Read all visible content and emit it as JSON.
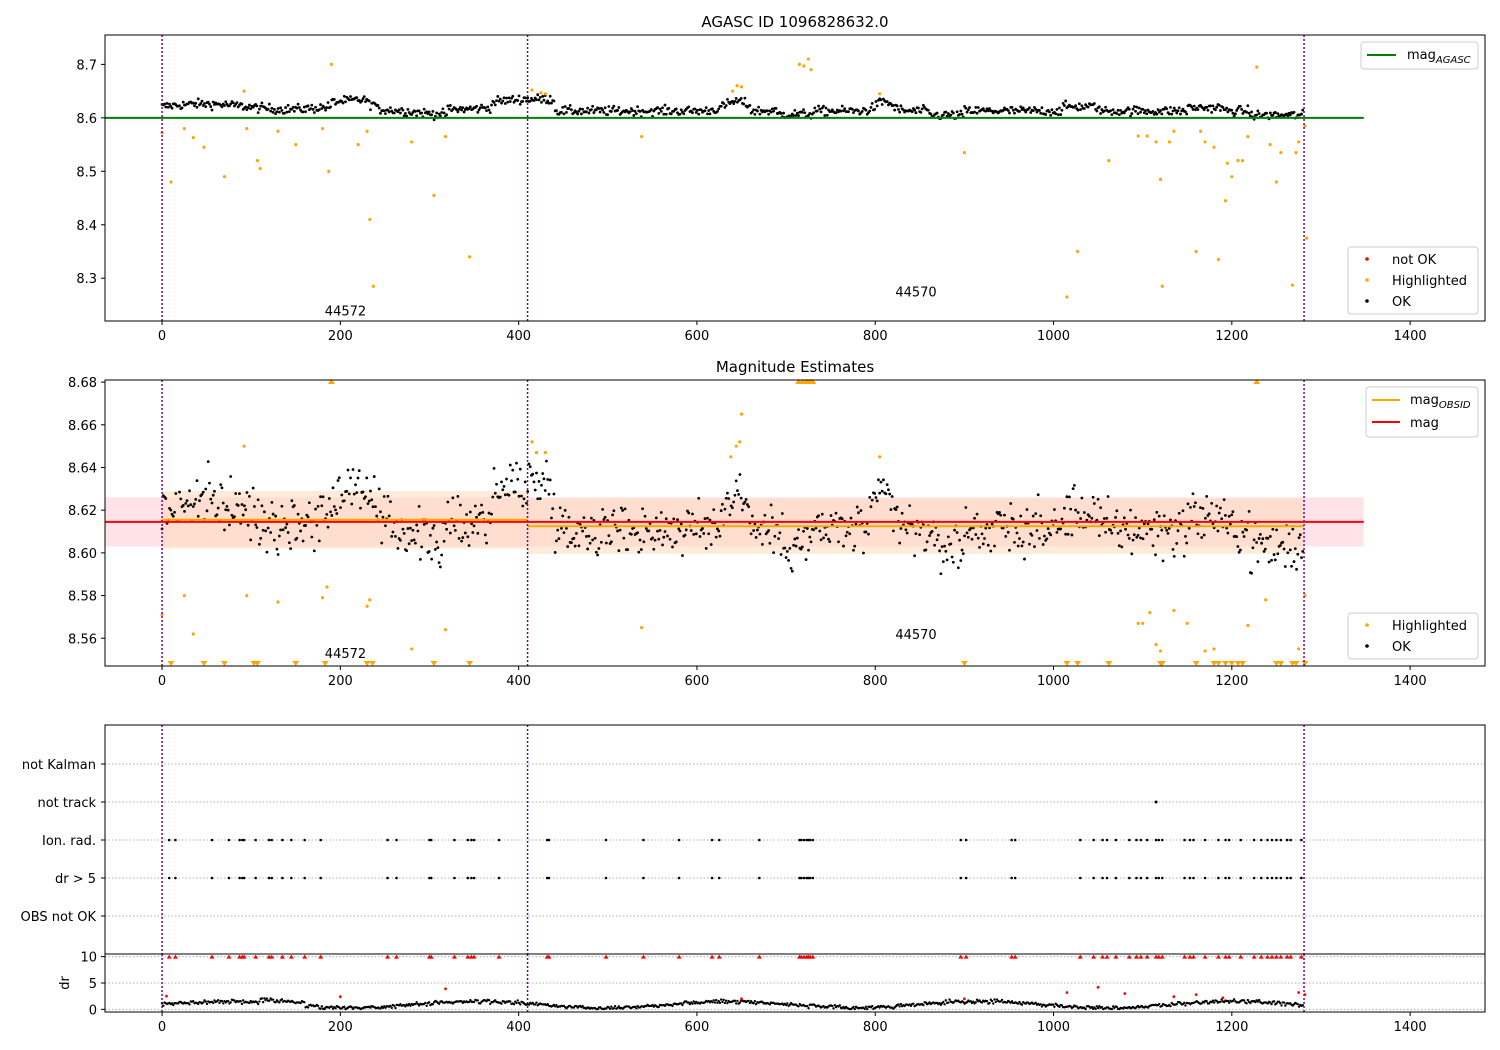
{
  "figure": {
    "x_ticks": [
      0,
      200,
      400,
      600,
      800,
      1000,
      1200,
      1400
    ],
    "xlim": [
      -64,
      1484
    ],
    "obs_boundaries": [
      0,
      410,
      1281
    ],
    "colors": {
      "ok": "#000000",
      "highlighted": "#ffa500",
      "not_ok": "#ff0000",
      "boundary": "#800080",
      "agasc_line": "#008000",
      "mag_line": "#ff0000",
      "mag_obsid_line": "#ffa500",
      "mag_band": "#ffc0cb",
      "obsid_band": "#ffdab9"
    }
  },
  "chart_data": [
    {
      "type": "scatter",
      "title": "AGASC ID 1096828632.0",
      "ylim": [
        8.22,
        8.755
      ],
      "y_ticks": [
        8.3,
        8.4,
        8.5,
        8.6,
        8.7
      ],
      "reference_line": {
        "name": "mag_AGASC",
        "value": 8.6,
        "x_range": [
          -64,
          1348
        ]
      },
      "obsid_labels": [
        {
          "text": "44572",
          "x": 205,
          "y": 8.24
        },
        {
          "text": "44570",
          "x": 845,
          "y": 8.275
        }
      ],
      "legend_lines": [
        {
          "label_main": "mag",
          "label_sub": "AGASC",
          "color": "#008000"
        }
      ],
      "legend_points": [
        {
          "label": "not OK",
          "color": "#ff0000"
        },
        {
          "label": "Highlighted",
          "color": "#ffa500"
        },
        {
          "label": "OK",
          "color": "#000000"
        }
      ],
      "highlighted_points": [
        [
          0,
          8.572
        ],
        [
          10,
          8.48
        ],
        [
          25,
          8.58
        ],
        [
          35,
          8.563
        ],
        [
          47,
          8.545
        ],
        [
          70,
          8.49
        ],
        [
          92,
          8.65
        ],
        [
          95,
          8.58
        ],
        [
          107,
          8.52
        ],
        [
          110,
          8.505
        ],
        [
          130,
          8.575
        ],
        [
          150,
          8.55
        ],
        [
          180,
          8.58
        ],
        [
          187,
          8.5
        ],
        [
          190,
          8.7
        ],
        [
          220,
          8.55
        ],
        [
          230,
          8.575
        ],
        [
          233,
          8.41
        ],
        [
          237,
          8.285
        ],
        [
          280,
          8.555
        ],
        [
          305,
          8.455
        ],
        [
          318,
          8.565
        ],
        [
          345,
          8.34
        ],
        [
          415,
          8.652
        ],
        [
          425,
          8.647
        ],
        [
          430,
          8.645
        ],
        [
          538,
          8.565
        ],
        [
          640,
          8.65
        ],
        [
          645,
          8.66
        ],
        [
          650,
          8.658
        ],
        [
          715,
          8.7
        ],
        [
          720,
          8.697
        ],
        [
          725,
          8.71
        ],
        [
          728,
          8.69
        ],
        [
          805,
          8.645
        ],
        [
          900,
          8.535
        ],
        [
          1015,
          8.265
        ],
        [
          1027,
          8.35
        ],
        [
          1062,
          8.52
        ],
        [
          1095,
          8.566
        ],
        [
          1105,
          8.566
        ],
        [
          1115,
          8.555
        ],
        [
          1120,
          8.485
        ],
        [
          1122,
          8.285
        ],
        [
          1130,
          8.555
        ],
        [
          1135,
          8.575
        ],
        [
          1160,
          8.35
        ],
        [
          1165,
          8.575
        ],
        [
          1170,
          8.555
        ],
        [
          1180,
          8.545
        ],
        [
          1185,
          8.335
        ],
        [
          1193,
          8.445
        ],
        [
          1195,
          8.515
        ],
        [
          1200,
          8.49
        ],
        [
          1207,
          8.52
        ],
        [
          1212,
          8.52
        ],
        [
          1218,
          8.565
        ],
        [
          1228,
          8.695
        ],
        [
          1243,
          8.55
        ],
        [
          1250,
          8.48
        ],
        [
          1255,
          8.535
        ],
        [
          1268,
          8.287
        ],
        [
          1272,
          8.535
        ],
        [
          1275,
          8.555
        ],
        [
          1282,
          8.585
        ],
        [
          1284,
          8.375
        ]
      ]
    },
    {
      "type": "scatter",
      "title": "Magnitude Estimates",
      "ylim": [
        8.547,
        8.681
      ],
      "y_ticks": [
        8.56,
        8.58,
        8.6,
        8.62,
        8.64,
        8.66,
        8.68
      ],
      "mag": {
        "value": 8.6145,
        "low": 8.603,
        "high": 8.626,
        "x_range": [
          -64,
          1348
        ]
      },
      "obsid_means": [
        {
          "x_range": [
            0,
            410
          ],
          "value": 8.6155,
          "low": 8.602,
          "high": 8.629
        },
        {
          "x_range": [
            410,
            1281
          ],
          "value": 8.6125,
          "low": 8.5995,
          "high": 8.6255
        }
      ],
      "obsid_labels": [
        {
          "text": "44572",
          "x": 205,
          "y": 8.553
        },
        {
          "text": "44570",
          "x": 845,
          "y": 8.562
        }
      ],
      "legend_lines": [
        {
          "label_main": "mag",
          "label_sub": "OBSID",
          "color": "#ffa500"
        },
        {
          "label_main": "mag",
          "label_sub": "",
          "color": "#ff0000"
        }
      ],
      "legend_points": [
        {
          "label": "Highlighted",
          "color": "#ffa500"
        },
        {
          "label": "OK",
          "color": "#000000"
        }
      ],
      "highlighted_points": [
        [
          0,
          8.571
        ],
        [
          25,
          8.58
        ],
        [
          35,
          8.562
        ],
        [
          92,
          8.65
        ],
        [
          95,
          8.58
        ],
        [
          130,
          8.577
        ],
        [
          180,
          8.579
        ],
        [
          185,
          8.584
        ],
        [
          230,
          8.575
        ],
        [
          233,
          8.578
        ],
        [
          280,
          8.555
        ],
        [
          318,
          8.564
        ],
        [
          415,
          8.652
        ],
        [
          420,
          8.647
        ],
        [
          430,
          8.647
        ],
        [
          538,
          8.565
        ],
        [
          638,
          8.645
        ],
        [
          644,
          8.65
        ],
        [
          648,
          8.652
        ],
        [
          650,
          8.665
        ],
        [
          805,
          8.645
        ],
        [
          1095,
          8.567
        ],
        [
          1100,
          8.567
        ],
        [
          1108,
          8.572
        ],
        [
          1115,
          8.557
        ],
        [
          1120,
          8.554
        ],
        [
          1135,
          8.573
        ],
        [
          1150,
          8.567
        ],
        [
          1170,
          8.554
        ],
        [
          1180,
          8.555
        ],
        [
          1218,
          8.566
        ],
        [
          1238,
          8.578
        ],
        [
          1275,
          8.555
        ],
        [
          1282,
          8.58
        ]
      ],
      "clipped_high_x": [
        190,
        714,
        718,
        722,
        724,
        727,
        730,
        1228
      ],
      "clipped_low_x": [
        10,
        47,
        70,
        103,
        107,
        150,
        183,
        230,
        236,
        305,
        345,
        900,
        1015,
        1027,
        1062,
        1120,
        1122,
        1160,
        1180,
        1185,
        1193,
        1200,
        1207,
        1212,
        1250,
        1255,
        1268,
        1272,
        1282
      ]
    },
    {
      "type": "scatter",
      "categories": [
        "not Kalman",
        "not track",
        "Ion. rad.",
        "dr > 5",
        "OBS not OK"
      ],
      "not_track_x": [
        1115
      ],
      "flag_x": [
        8,
        15,
        56,
        75,
        87,
        90,
        92,
        105,
        120,
        123,
        135,
        145,
        160,
        178,
        253,
        263,
        300,
        302,
        328,
        343,
        347,
        350,
        378,
        432,
        434,
        498,
        540,
        580,
        617,
        625,
        670,
        715,
        717,
        720,
        723,
        725,
        727,
        730,
        896,
        902,
        953,
        957,
        1030,
        1045,
        1055,
        1060,
        1070,
        1085,
        1093,
        1098,
        1105,
        1115,
        1118,
        1122,
        1147,
        1153,
        1157,
        1170,
        1185,
        1193,
        1197,
        1210,
        1225,
        1233,
        1240,
        1245,
        1250,
        1255,
        1262,
        1266,
        1278
      ]
    },
    {
      "type": "scatter",
      "ylabel": "dr",
      "ylim": [
        -0.5,
        10.5
      ],
      "y_ticks": [
        0,
        5,
        10
      ],
      "outliers": [
        [
          5,
          2.5
        ],
        [
          200,
          2.4
        ],
        [
          318,
          3.9
        ],
        [
          650,
          2.0
        ],
        [
          900,
          2.0
        ],
        [
          1015,
          3.2
        ],
        [
          1050,
          4.2
        ],
        [
          1080,
          3.0
        ],
        [
          1135,
          2.4
        ],
        [
          1160,
          2.8
        ],
        [
          1190,
          2.2
        ],
        [
          1275,
          3.2
        ],
        [
          1282,
          2.8
        ]
      ],
      "clipped_high_x": [
        8,
        15,
        56,
        75,
        87,
        90,
        92,
        105,
        120,
        123,
        135,
        145,
        160,
        178,
        253,
        263,
        300,
        302,
        328,
        343,
        347,
        350,
        378,
        432,
        434,
        498,
        540,
        580,
        617,
        625,
        670,
        715,
        717,
        720,
        723,
        725,
        727,
        730,
        896,
        902,
        953,
        957,
        1030,
        1045,
        1055,
        1060,
        1070,
        1085,
        1093,
        1098,
        1105,
        1115,
        1118,
        1122,
        1147,
        1153,
        1157,
        1170,
        1185,
        1193,
        1197,
        1210,
        1225,
        1233,
        1240,
        1245,
        1250,
        1255,
        1262,
        1266,
        1278
      ]
    }
  ]
}
